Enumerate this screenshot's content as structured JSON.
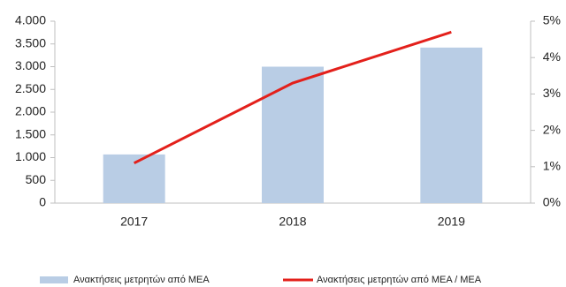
{
  "chart_data": {
    "type": "combo",
    "categories": [
      "2017",
      "2018",
      "2019"
    ],
    "series": [
      {
        "name": "Ανακτήσεις μετρητών από ΜΕΑ",
        "type": "bar",
        "color": "#b9cde5",
        "values": [
          1070,
          3000,
          3420
        ]
      },
      {
        "name": "Ανακτήσεις μετρητών από ΜΕΑ / ΜΕΑ",
        "type": "line",
        "color": "#e3201b",
        "axis": "y2",
        "values": [
          1.1,
          3.3,
          4.7
        ]
      }
    ],
    "ylim": [
      0,
      4000
    ],
    "yticks": [
      0,
      500,
      {
        "value": 1000,
        "label": "1.000"
      },
      {
        "value": 1500,
        "label": "1.500"
      },
      {
        "value": 2000,
        "label": "2.000"
      },
      {
        "value": 2500,
        "label": "2.500"
      },
      {
        "value": 3000,
        "label": "3.000"
      },
      {
        "value": 3500,
        "label": "3.500"
      },
      {
        "value": 4000,
        "label": "4.000"
      }
    ],
    "y2lim": [
      0,
      5
    ],
    "y2ticks": [
      {
        "value": 0,
        "label": "0%"
      },
      {
        "value": 1,
        "label": "1%"
      },
      {
        "value": 2,
        "label": "2%"
      },
      {
        "value": 3,
        "label": "3%"
      },
      {
        "value": 4,
        "label": "4%"
      },
      {
        "value": 5,
        "label": "5%"
      }
    ],
    "grid": false,
    "legend": "bottom"
  }
}
